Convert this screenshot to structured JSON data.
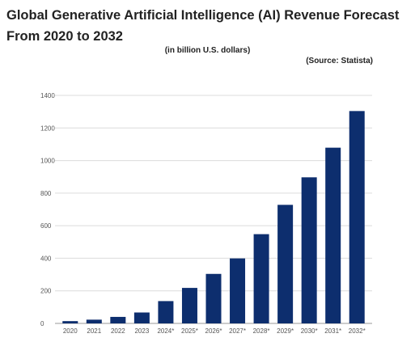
{
  "title": "Global Generative Artificial Intelligence (AI) Revenue Forecast From 2020 to 2032",
  "subtitle": "(in billion U.S. dollars)",
  "source": "(Source: Statista)",
  "colors": {
    "bar": "#0d2e6e",
    "grid": "#dcdcdc",
    "axis": "#9a9a9a"
  },
  "chart_data": {
    "type": "bar",
    "title": "Global Generative Artificial Intelligence (AI) Revenue Forecast From 2020 to 2032",
    "subtitle": "(in billion U.S. dollars)",
    "categories": [
      "2020",
      "2021",
      "2022",
      "2023",
      "2024*",
      "2025*",
      "2026*",
      "2027*",
      "2028*",
      "2029*",
      "2030*",
      "2031*",
      "2032*"
    ],
    "values": [
      14,
      23,
      40,
      67,
      137,
      218,
      304,
      399,
      548,
      728,
      897,
      1079,
      1304
    ],
    "ylim": [
      0,
      1400
    ],
    "yticks": [
      0,
      200,
      400,
      600,
      800,
      1000,
      1200,
      1400
    ],
    "grid": true,
    "xlabel": "",
    "ylabel": ""
  }
}
